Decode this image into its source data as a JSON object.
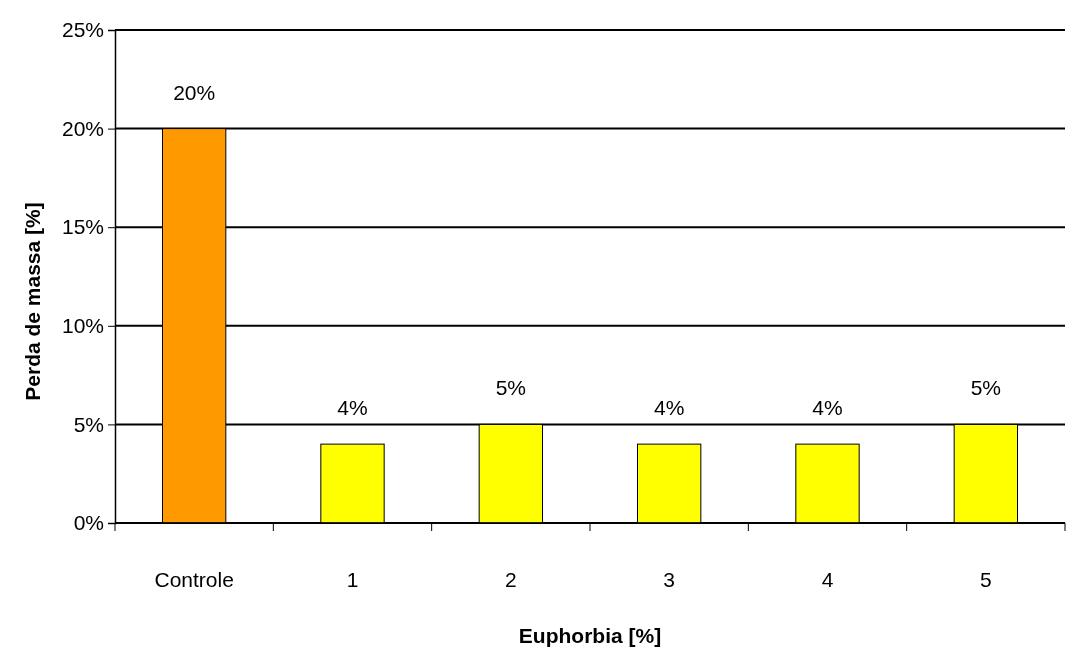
{
  "chart_data": {
    "type": "bar",
    "xlabel": "Euphorbia [%]",
    "ylabel": "Perda de massa [%]",
    "categories": [
      "Controle",
      "1",
      "2",
      "3",
      "4",
      "5"
    ],
    "values": [
      20,
      4,
      5,
      4,
      4,
      5
    ],
    "colors": [
      "#ff9900",
      "#ffff00",
      "#ffff00",
      "#ffff00",
      "#ffff00",
      "#ffff00"
    ],
    "value_labels": [
      "20%",
      "4%",
      "5%",
      "4%",
      "4%",
      "5%"
    ],
    "ylim": [
      0,
      25
    ],
    "yticks": [
      {
        "value": 0,
        "label": "0%"
      },
      {
        "value": 5,
        "label": "5%"
      },
      {
        "value": 10,
        "label": "10%"
      },
      {
        "value": 15,
        "label": "15%"
      },
      {
        "value": 20,
        "label": "20%"
      },
      {
        "value": 25,
        "label": "25%"
      }
    ],
    "grid": "y"
  }
}
